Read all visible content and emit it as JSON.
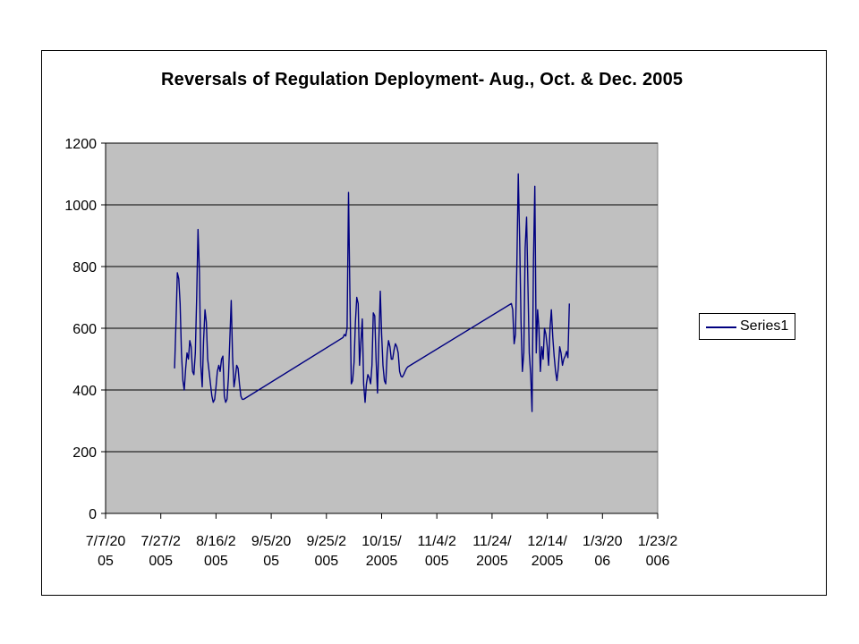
{
  "chart_data": {
    "type": "line",
    "title": "Reversals of Regulation Deployment- Aug., Oct. & Dec. 2005",
    "xlabel": "",
    "ylabel": "",
    "ylim": [
      0,
      1200
    ],
    "yticks": [
      0,
      200,
      400,
      600,
      800,
      1000,
      1200
    ],
    "xlim": [
      "2005-07-07",
      "2006-01-23"
    ],
    "xticks": [
      {
        "date": "2005-07-07",
        "label": [
          "7/7/20",
          "05"
        ]
      },
      {
        "date": "2005-07-27",
        "label": [
          "7/27/2",
          "005"
        ]
      },
      {
        "date": "2005-08-16",
        "label": [
          "8/16/2",
          "005"
        ]
      },
      {
        "date": "2005-09-05",
        "label": [
          "9/5/20",
          "05"
        ]
      },
      {
        "date": "2005-09-25",
        "label": [
          "9/25/2",
          "005"
        ]
      },
      {
        "date": "2005-10-15",
        "label": [
          "10/15/",
          "2005"
        ]
      },
      {
        "date": "2005-11-04",
        "label": [
          "11/4/2",
          "005"
        ]
      },
      {
        "date": "2005-11-24",
        "label": [
          "11/24/",
          "2005"
        ]
      },
      {
        "date": "2005-12-14",
        "label": [
          "12/14/",
          "2005"
        ]
      },
      {
        "date": "2006-01-03",
        "label": [
          "1/3/20",
          "06"
        ]
      },
      {
        "date": "2006-01-23",
        "label": [
          "1/23/2",
          "006"
        ]
      }
    ],
    "grid": true,
    "plot_background": "#c0c0c0",
    "legend_position": "right",
    "series": [
      {
        "name": "Series1",
        "color": "#000080",
        "points": [
          [
            "2005-08-01 00:00",
            470
          ],
          [
            "2005-08-01 12:00",
            620
          ],
          [
            "2005-08-02 00:00",
            780
          ],
          [
            "2005-08-02 12:00",
            760
          ],
          [
            "2005-08-03 00:00",
            680
          ],
          [
            "2005-08-03 12:00",
            520
          ],
          [
            "2005-08-04 00:00",
            430
          ],
          [
            "2005-08-04 12:00",
            400
          ],
          [
            "2005-08-05 00:00",
            470
          ],
          [
            "2005-08-05 12:00",
            520
          ],
          [
            "2005-08-06 00:00",
            500
          ],
          [
            "2005-08-06 12:00",
            560
          ],
          [
            "2005-08-07 00:00",
            540
          ],
          [
            "2005-08-07 12:00",
            460
          ],
          [
            "2005-08-08 00:00",
            450
          ],
          [
            "2005-08-08 12:00",
            520
          ],
          [
            "2005-08-09 00:00",
            700
          ],
          [
            "2005-08-09 12:00",
            920
          ],
          [
            "2005-08-10 00:00",
            780
          ],
          [
            "2005-08-10 12:00",
            480
          ],
          [
            "2005-08-11 00:00",
            410
          ],
          [
            "2005-08-11 12:00",
            560
          ],
          [
            "2005-08-12 00:00",
            660
          ],
          [
            "2005-08-12 12:00",
            620
          ],
          [
            "2005-08-13 00:00",
            500
          ],
          [
            "2005-08-13 12:00",
            460
          ],
          [
            "2005-08-14 00:00",
            420
          ],
          [
            "2005-08-14 12:00",
            380
          ],
          [
            "2005-08-15 00:00",
            360
          ],
          [
            "2005-08-15 12:00",
            370
          ],
          [
            "2005-08-16 00:00",
            410
          ],
          [
            "2005-08-16 12:00",
            460
          ],
          [
            "2005-08-17 00:00",
            480
          ],
          [
            "2005-08-17 12:00",
            460
          ],
          [
            "2005-08-18 00:00",
            500
          ],
          [
            "2005-08-18 12:00",
            510
          ],
          [
            "2005-08-19 00:00",
            380
          ],
          [
            "2005-08-19 12:00",
            360
          ],
          [
            "2005-08-20 00:00",
            370
          ],
          [
            "2005-08-20 12:00",
            440
          ],
          [
            "2005-08-21 00:00",
            560
          ],
          [
            "2005-08-21 12:00",
            690
          ],
          [
            "2005-08-22 00:00",
            510
          ],
          [
            "2005-08-22 12:00",
            410
          ],
          [
            "2005-08-23 00:00",
            440
          ],
          [
            "2005-08-23 12:00",
            480
          ],
          [
            "2005-08-24 00:00",
            470
          ],
          [
            "2005-08-24 12:00",
            420
          ],
          [
            "2005-08-25 00:00",
            380
          ],
          [
            "2005-08-25 12:00",
            370
          ],
          [
            "2005-08-26 00:00",
            370
          ],
          [
            "2005-10-01 00:00",
            570
          ],
          [
            "2005-10-01 12:00",
            580
          ],
          [
            "2005-10-02 00:00",
            575
          ],
          [
            "2005-10-02 12:00",
            600
          ],
          [
            "2005-10-03 00:00",
            1040
          ],
          [
            "2005-10-03 12:00",
            720
          ],
          [
            "2005-10-04 00:00",
            420
          ],
          [
            "2005-10-04 12:00",
            430
          ],
          [
            "2005-10-05 00:00",
            490
          ],
          [
            "2005-10-05 12:00",
            620
          ],
          [
            "2005-10-06 00:00",
            700
          ],
          [
            "2005-10-06 12:00",
            680
          ],
          [
            "2005-10-07 00:00",
            480
          ],
          [
            "2005-10-07 12:00",
            560
          ],
          [
            "2005-10-08 00:00",
            630
          ],
          [
            "2005-10-08 12:00",
            420
          ],
          [
            "2005-10-09 00:00",
            360
          ],
          [
            "2005-10-09 12:00",
            420
          ],
          [
            "2005-10-10 00:00",
            450
          ],
          [
            "2005-10-10 12:00",
            440
          ],
          [
            "2005-10-11 00:00",
            420
          ],
          [
            "2005-10-11 12:00",
            480
          ],
          [
            "2005-10-12 00:00",
            650
          ],
          [
            "2005-10-12 12:00",
            640
          ],
          [
            "2005-10-13 00:00",
            500
          ],
          [
            "2005-10-13 12:00",
            390
          ],
          [
            "2005-10-14 00:00",
            560
          ],
          [
            "2005-10-14 12:00",
            720
          ],
          [
            "2005-10-15 00:00",
            580
          ],
          [
            "2005-10-15 12:00",
            480
          ],
          [
            "2005-10-16 00:00",
            430
          ],
          [
            "2005-10-16 12:00",
            420
          ],
          [
            "2005-10-17 00:00",
            520
          ],
          [
            "2005-10-17 12:00",
            560
          ],
          [
            "2005-10-18 00:00",
            540
          ],
          [
            "2005-10-18 12:00",
            500
          ],
          [
            "2005-10-19 00:00",
            500
          ],
          [
            "2005-10-19 12:00",
            530
          ],
          [
            "2005-10-20 00:00",
            550
          ],
          [
            "2005-10-20 12:00",
            540
          ],
          [
            "2005-10-21 00:00",
            520
          ],
          [
            "2005-10-21 12:00",
            460
          ],
          [
            "2005-10-22 00:00",
            445
          ],
          [
            "2005-10-22 12:00",
            442
          ],
          [
            "2005-10-23 00:00",
            450
          ],
          [
            "2005-10-23 12:00",
            460
          ],
          [
            "2005-10-24 00:00",
            470
          ],
          [
            "2005-10-24 12:00",
            475
          ],
          [
            "2005-12-01 00:00",
            680
          ],
          [
            "2005-12-01 12:00",
            660
          ],
          [
            "2005-12-02 00:00",
            550
          ],
          [
            "2005-12-02 12:00",
            580
          ],
          [
            "2005-12-03 00:00",
            820
          ],
          [
            "2005-12-03 12:00",
            1100
          ],
          [
            "2005-12-04 00:00",
            880
          ],
          [
            "2005-12-04 12:00",
            620
          ],
          [
            "2005-12-05 00:00",
            460
          ],
          [
            "2005-12-05 12:00",
            520
          ],
          [
            "2005-12-06 00:00",
            860
          ],
          [
            "2005-12-06 12:00",
            960
          ],
          [
            "2005-12-07 00:00",
            740
          ],
          [
            "2005-12-07 12:00",
            520
          ],
          [
            "2005-12-08 00:00",
            450
          ],
          [
            "2005-12-08 12:00",
            330
          ],
          [
            "2005-12-09 00:00",
            820
          ],
          [
            "2005-12-09 12:00",
            1060
          ],
          [
            "2005-12-10 00:00",
            520
          ],
          [
            "2005-12-10 12:00",
            660
          ],
          [
            "2005-12-11 00:00",
            600
          ],
          [
            "2005-12-11 12:00",
            460
          ],
          [
            "2005-12-12 00:00",
            540
          ],
          [
            "2005-12-12 12:00",
            500
          ],
          [
            "2005-12-13 00:00",
            600
          ],
          [
            "2005-12-13 12:00",
            580
          ],
          [
            "2005-12-14 00:00",
            540
          ],
          [
            "2005-12-14 12:00",
            480
          ],
          [
            "2005-12-15 00:00",
            600
          ],
          [
            "2005-12-15 12:00",
            660
          ],
          [
            "2005-12-16 00:00",
            570
          ],
          [
            "2005-12-16 12:00",
            510
          ],
          [
            "2005-12-17 00:00",
            460
          ],
          [
            "2005-12-17 12:00",
            430
          ],
          [
            "2005-12-18 00:00",
            470
          ],
          [
            "2005-12-18 12:00",
            540
          ],
          [
            "2005-12-19 00:00",
            520
          ],
          [
            "2005-12-19 12:00",
            480
          ],
          [
            "2005-12-20 00:00",
            500
          ],
          [
            "2005-12-20 12:00",
            510
          ],
          [
            "2005-12-21 00:00",
            525
          ],
          [
            "2005-12-21 12:00",
            505
          ],
          [
            "2005-12-22 00:00",
            680
          ]
        ]
      }
    ]
  }
}
